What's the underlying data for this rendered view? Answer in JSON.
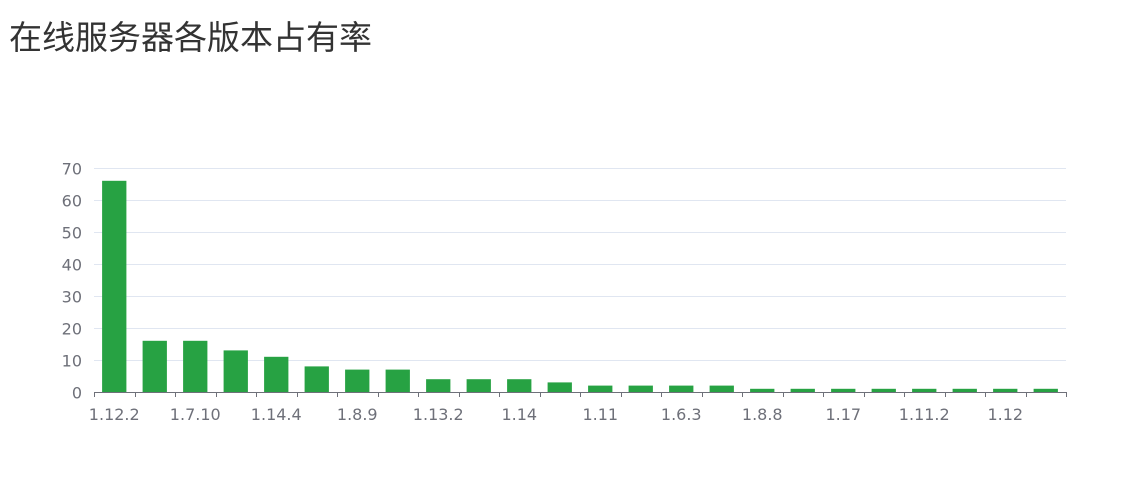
{
  "title": "在线服务器各版本占有率",
  "colors": {
    "bar": "#27a243",
    "grid": "#e0e6f1",
    "axis": "#6e7079",
    "title": "#333333"
  },
  "chart_data": {
    "type": "bar",
    "title": "在线服务器各版本占有率",
    "xlabel": "",
    "ylabel": "",
    "ylim": [
      0,
      70
    ],
    "yticks": [
      0,
      10,
      20,
      30,
      40,
      50,
      60,
      70
    ],
    "grid": true,
    "x_tick_labels": [
      "1.12.2",
      "1.7.10",
      "1.14.4",
      "1.8.9",
      "1.13.2",
      "1.14",
      "1.11",
      "1.6.3",
      "1.8.8",
      "1.17",
      "1.11.2",
      "1.12"
    ],
    "x_tick_label_every": 2,
    "bar_count": 24,
    "values": [
      66,
      16,
      16,
      13,
      11,
      8,
      7,
      7,
      4,
      4,
      4,
      3,
      2,
      2,
      2,
      2,
      1,
      1,
      1,
      1,
      1,
      1,
      1,
      1
    ]
  }
}
